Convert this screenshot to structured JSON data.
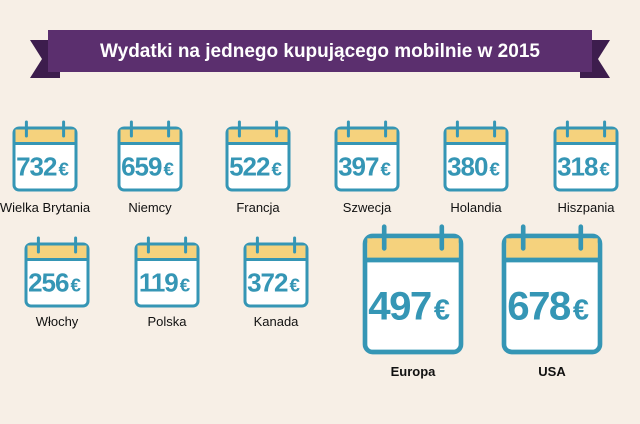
{
  "title": "Wydatki na jednego kupującego mobilnie w 2015",
  "currency": "€",
  "items": [
    {
      "label": "Wielka Brytania",
      "value": 732
    },
    {
      "label": "Niemcy",
      "value": 659
    },
    {
      "label": "Francja",
      "value": 522
    },
    {
      "label": "Szwecja",
      "value": 397
    },
    {
      "label": "Holandia",
      "value": 380
    },
    {
      "label": "Hiszpania",
      "value": 318
    },
    {
      "label": "Włochy",
      "value": 256
    },
    {
      "label": "Polska",
      "value": 119
    },
    {
      "label": "Kanada",
      "value": 372
    },
    {
      "label": "Europa",
      "value": 497
    },
    {
      "label": "USA",
      "value": 678
    }
  ]
}
